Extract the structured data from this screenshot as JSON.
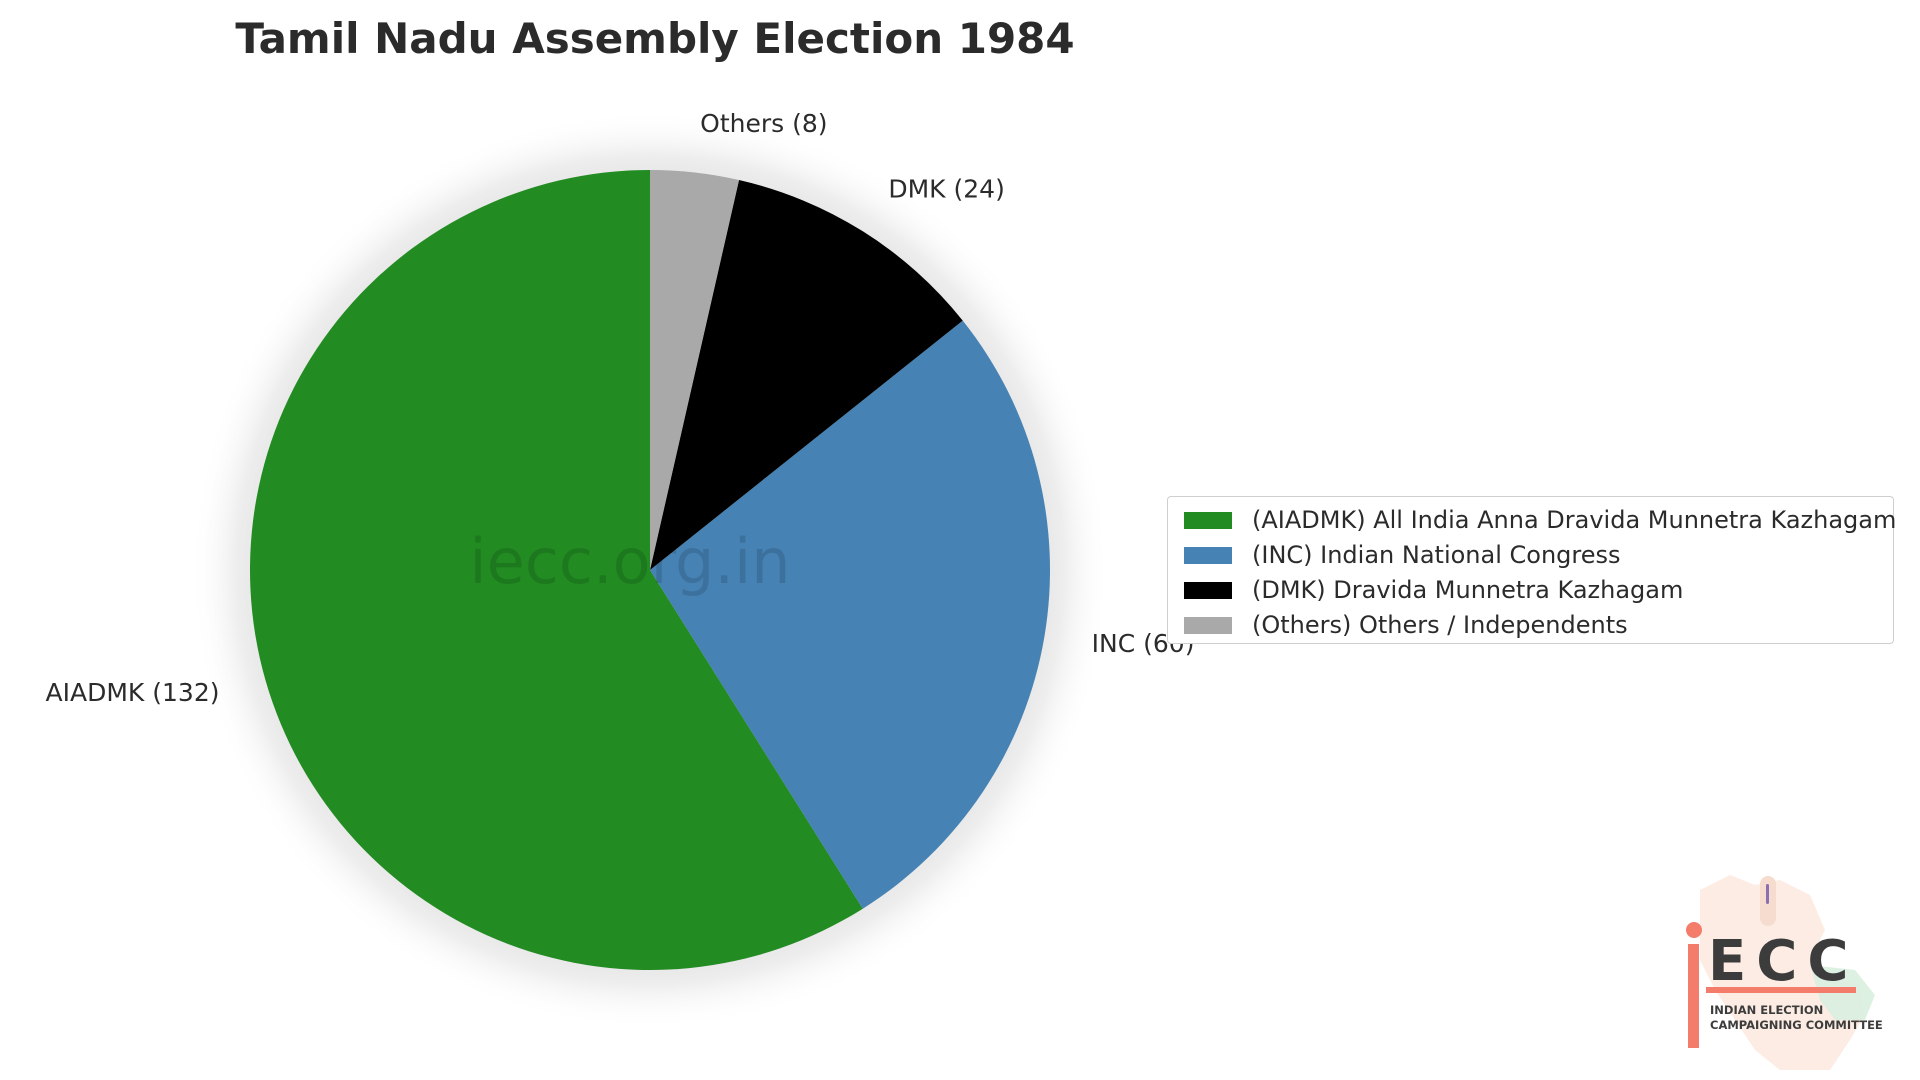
{
  "chart_data": {
    "type": "pie",
    "title": "Tamil Nadu Assembly Election 1984",
    "categories": [
      "AIADMK",
      "INC",
      "DMK",
      "Others"
    ],
    "values": [
      132,
      60,
      24,
      8
    ],
    "slice_labels": [
      "AIADMK (132)",
      "INC (60)",
      "DMK (24)",
      "Others (8)"
    ],
    "colors": [
      "#228b22",
      "#4682b4",
      "#000000",
      "#a9a9a9"
    ],
    "start_angle": "top",
    "direction": "counterclockwise",
    "legend": {
      "placement": "center-right",
      "entries": [
        "(AIADMK) All India Anna Dravida Munnetra Kazhagam",
        "(INC) Indian National Congress",
        "(DMK) Dravida Munnetra Kazhagam",
        "(Others) Others / Independents"
      ]
    }
  },
  "watermark": "iecc.org.in",
  "logo": {
    "name": "ECC",
    "line1": "INDIAN ELECTION",
    "line2": "CAMPAIGNING COMMITTEE",
    "accent_color": "#f47c6b"
  }
}
